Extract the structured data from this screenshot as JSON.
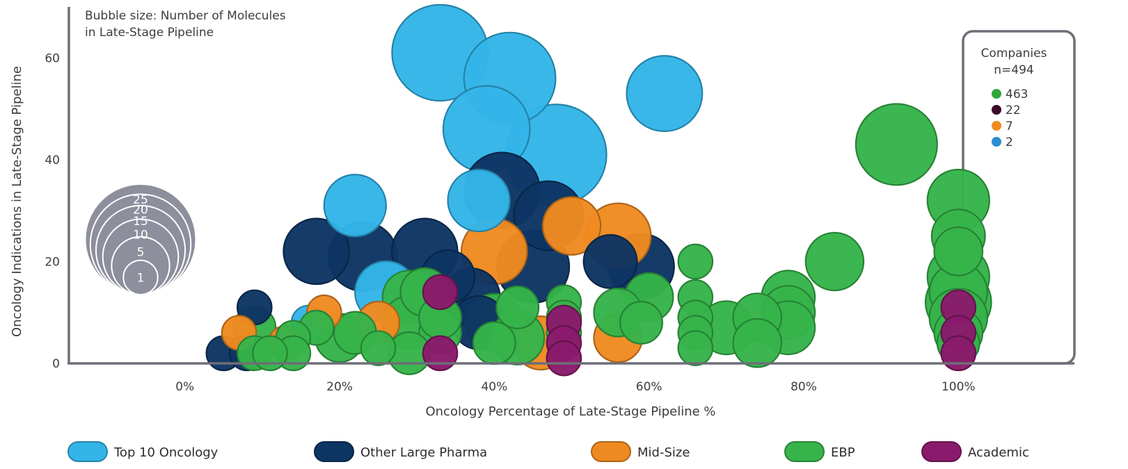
{
  "chart_data": {
    "type": "scatter",
    "subtype": "bubble",
    "xlabel": "Oncology Percentage of Late-Stage Pipeline %",
    "ylabel": "Oncology Indications in Late-Stage Pipeline",
    "xlim": [
      -0.15,
      1.15
    ],
    "ylim": [
      0,
      70
    ],
    "x_ticks": [
      {
        "v": 0,
        "label": "0%"
      },
      {
        "v": 0.2,
        "label": "20%"
      },
      {
        "v": 0.4,
        "label": "40%"
      },
      {
        "v": 0.6,
        "label": "60%"
      },
      {
        "v": 0.8,
        "label": "80%"
      },
      {
        "v": 1.0,
        "label": "100%"
      }
    ],
    "y_ticks": [
      {
        "v": 0,
        "label": "0"
      },
      {
        "v": 20,
        "label": "20"
      },
      {
        "v": 40,
        "label": "40"
      },
      {
        "v": 60,
        "label": "60"
      }
    ],
    "grid": false,
    "size_note": [
      "Bubble size: Number of Molecules",
      "in Late-Stage Pipeline"
    ],
    "size_scale": [
      25,
      20,
      15,
      10,
      5,
      1
    ],
    "companies_box": {
      "title": "Companies",
      "total": "n=494",
      "counts": [
        {
          "label": "463",
          "color": "#2fa83a"
        },
        {
          "label": "22",
          "color": "#3a0a2c"
        },
        {
          "label": "7",
          "color": "#ef8a21"
        },
        {
          "label": "2",
          "color": "#2c8fcf"
        }
      ]
    },
    "series": [
      {
        "name": "Top 10 Oncology",
        "color": "#33b5e8",
        "points": [
          {
            "x": 0.33,
            "y": 61,
            "s": 18
          },
          {
            "x": 0.42,
            "y": 56,
            "s": 16
          },
          {
            "x": 0.48,
            "y": 41,
            "s": 20
          },
          {
            "x": 0.39,
            "y": 46,
            "s": 14
          },
          {
            "x": 0.38,
            "y": 32,
            "s": 6
          },
          {
            "x": 0.62,
            "y": 53,
            "s": 10
          },
          {
            "x": 0.22,
            "y": 31,
            "s": 6
          },
          {
            "x": 0.26,
            "y": 14,
            "s": 6
          },
          {
            "x": 0.16,
            "y": 8,
            "s": 1
          }
        ]
      },
      {
        "name": "Other Large Pharma",
        "color": "#0d3563",
        "points": [
          {
            "x": 0.41,
            "y": 34,
            "s": 10
          },
          {
            "x": 0.47,
            "y": 29,
            "s": 8
          },
          {
            "x": 0.45,
            "y": 19,
            "s": 9
          },
          {
            "x": 0.59,
            "y": 19,
            "s": 7
          },
          {
            "x": 0.55,
            "y": 20,
            "s": 4
          },
          {
            "x": 0.17,
            "y": 22,
            "s": 7
          },
          {
            "x": 0.23,
            "y": 21,
            "s": 8
          },
          {
            "x": 0.31,
            "y": 22,
            "s": 7
          },
          {
            "x": 0.34,
            "y": 17,
            "s": 4
          },
          {
            "x": 0.37,
            "y": 13,
            "s": 5
          },
          {
            "x": 0.38,
            "y": 8,
            "s": 4
          },
          {
            "x": 0.09,
            "y": 11,
            "s": 1
          },
          {
            "x": 0.05,
            "y": 2,
            "s": 1
          },
          {
            "x": 0.08,
            "y": 2,
            "s": 1
          }
        ]
      },
      {
        "name": "Mid-Size",
        "color": "#ef8a21",
        "points": [
          {
            "x": 0.4,
            "y": 22,
            "s": 7
          },
          {
            "x": 0.5,
            "y": 27,
            "s": 5
          },
          {
            "x": 0.56,
            "y": 25,
            "s": 7
          },
          {
            "x": 0.56,
            "y": 5,
            "s": 3
          },
          {
            "x": 0.46,
            "y": 4,
            "s": 4
          },
          {
            "x": 0.25,
            "y": 8,
            "s": 2
          },
          {
            "x": 0.18,
            "y": 10,
            "s": 1
          },
          {
            "x": 0.07,
            "y": 6,
            "s": 1
          },
          {
            "x": 0.13,
            "y": 4,
            "s": 1
          }
        ]
      },
      {
        "name": "EBP",
        "color": "#36b44a",
        "points": [
          {
            "x": 0.92,
            "y": 43,
            "s": 12
          },
          {
            "x": 0.84,
            "y": 20,
            "s": 5
          },
          {
            "x": 1.0,
            "y": 32,
            "s": 6
          },
          {
            "x": 1.0,
            "y": 25,
            "s": 4
          },
          {
            "x": 1.0,
            "y": 22,
            "s": 3
          },
          {
            "x": 1.0,
            "y": 17,
            "s": 6
          },
          {
            "x": 1.0,
            "y": 14,
            "s": 5
          },
          {
            "x": 1.0,
            "y": 12,
            "s": 7
          },
          {
            "x": 1.0,
            "y": 9,
            "s": 5
          },
          {
            "x": 1.0,
            "y": 6,
            "s": 3
          },
          {
            "x": 1.0,
            "y": 4,
            "s": 2
          },
          {
            "x": 0.78,
            "y": 13,
            "s": 4
          },
          {
            "x": 0.78,
            "y": 10,
            "s": 4
          },
          {
            "x": 0.78,
            "y": 7,
            "s": 4
          },
          {
            "x": 0.74,
            "y": 9,
            "s": 3
          },
          {
            "x": 0.74,
            "y": 4,
            "s": 3
          },
          {
            "x": 0.7,
            "y": 7,
            "s": 4
          },
          {
            "x": 0.66,
            "y": 20,
            "s": 1
          },
          {
            "x": 0.66,
            "y": 13,
            "s": 1
          },
          {
            "x": 0.66,
            "y": 9,
            "s": 1
          },
          {
            "x": 0.66,
            "y": 6,
            "s": 1
          },
          {
            "x": 0.66,
            "y": 3,
            "s": 1
          },
          {
            "x": 0.6,
            "y": 13,
            "s": 3
          },
          {
            "x": 0.59,
            "y": 8,
            "s": 2
          },
          {
            "x": 0.56,
            "y": 10,
            "s": 3
          },
          {
            "x": 0.49,
            "y": 12,
            "s": 1
          },
          {
            "x": 0.49,
            "y": 9,
            "s": 1
          },
          {
            "x": 0.49,
            "y": 6,
            "s": 1
          },
          {
            "x": 0.43,
            "y": 11,
            "s": 2
          },
          {
            "x": 0.43,
            "y": 5,
            "s": 4
          },
          {
            "x": 0.4,
            "y": 8,
            "s": 5
          },
          {
            "x": 0.4,
            "y": 4,
            "s": 2
          },
          {
            "x": 0.33,
            "y": 6,
            "s": 2
          },
          {
            "x": 0.33,
            "y": 9,
            "s": 2
          },
          {
            "x": 0.31,
            "y": 14,
            "s": 3
          },
          {
            "x": 0.29,
            "y": 13,
            "s": 4
          },
          {
            "x": 0.29,
            "y": 8,
            "s": 4
          },
          {
            "x": 0.29,
            "y": 2,
            "s": 2
          },
          {
            "x": 0.25,
            "y": 3,
            "s": 1
          },
          {
            "x": 0.22,
            "y": 6,
            "s": 2
          },
          {
            "x": 0.2,
            "y": 5,
            "s": 3
          },
          {
            "x": 0.17,
            "y": 7,
            "s": 1
          },
          {
            "x": 0.14,
            "y": 5,
            "s": 1
          },
          {
            "x": 0.14,
            "y": 2,
            "s": 1
          },
          {
            "x": 0.09,
            "y": 7,
            "s": 2
          },
          {
            "x": 0.09,
            "y": 2,
            "s": 1
          },
          {
            "x": 0.11,
            "y": 2,
            "s": 1
          }
        ]
      },
      {
        "name": "Academic",
        "color": "#8a1a6b",
        "points": [
          {
            "x": 1.0,
            "y": 11,
            "s": 1
          },
          {
            "x": 1.0,
            "y": 6,
            "s": 1
          },
          {
            "x": 1.0,
            "y": 2,
            "s": 1
          },
          {
            "x": 0.49,
            "y": 8,
            "s": 1
          },
          {
            "x": 0.49,
            "y": 4,
            "s": 1
          },
          {
            "x": 0.49,
            "y": 1,
            "s": 1
          },
          {
            "x": 0.33,
            "y": 14,
            "s": 1
          },
          {
            "x": 0.33,
            "y": 2,
            "s": 1
          }
        ]
      }
    ]
  }
}
